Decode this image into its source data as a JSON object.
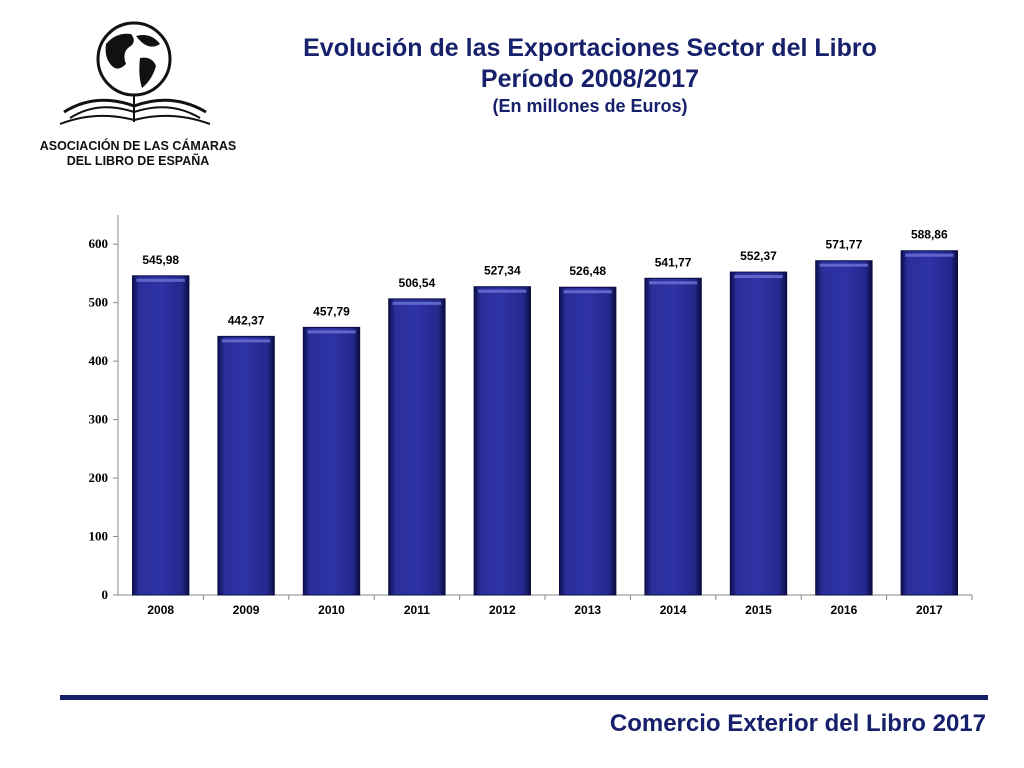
{
  "logo": {
    "icon": "globe-book-icon",
    "org_line1": "ASOCIACIÓN DE LAS CÁMARAS",
    "org_line2": "DEL LIBRO DE ESPAÑA"
  },
  "header": {
    "title": "Evolución de las Exportaciones Sector del Libro",
    "period": "Período 2008/2017",
    "unit": "(En millones de Euros)"
  },
  "chart_data": {
    "type": "bar",
    "categories": [
      "2008",
      "2009",
      "2010",
      "2011",
      "2012",
      "2013",
      "2014",
      "2015",
      "2016",
      "2017"
    ],
    "values": [
      545.98,
      442.37,
      457.79,
      506.54,
      527.34,
      526.48,
      541.77,
      552.37,
      571.77,
      588.86
    ],
    "data_labels": [
      "545,98",
      "442,37",
      "457,79",
      "506,54",
      "527,34",
      "526,48",
      "541,77",
      "552,37",
      "571,77",
      "588,86"
    ],
    "ylim": [
      0,
      650
    ],
    "yticks": [
      0,
      100,
      200,
      300,
      400,
      500,
      600
    ],
    "grid": false,
    "legend": "none",
    "bar_color": "#24288c",
    "xlabel": "",
    "ylabel": ""
  },
  "footer": {
    "text": "Comercio Exterior del Libro 2017",
    "accent_color": "#17206b"
  }
}
